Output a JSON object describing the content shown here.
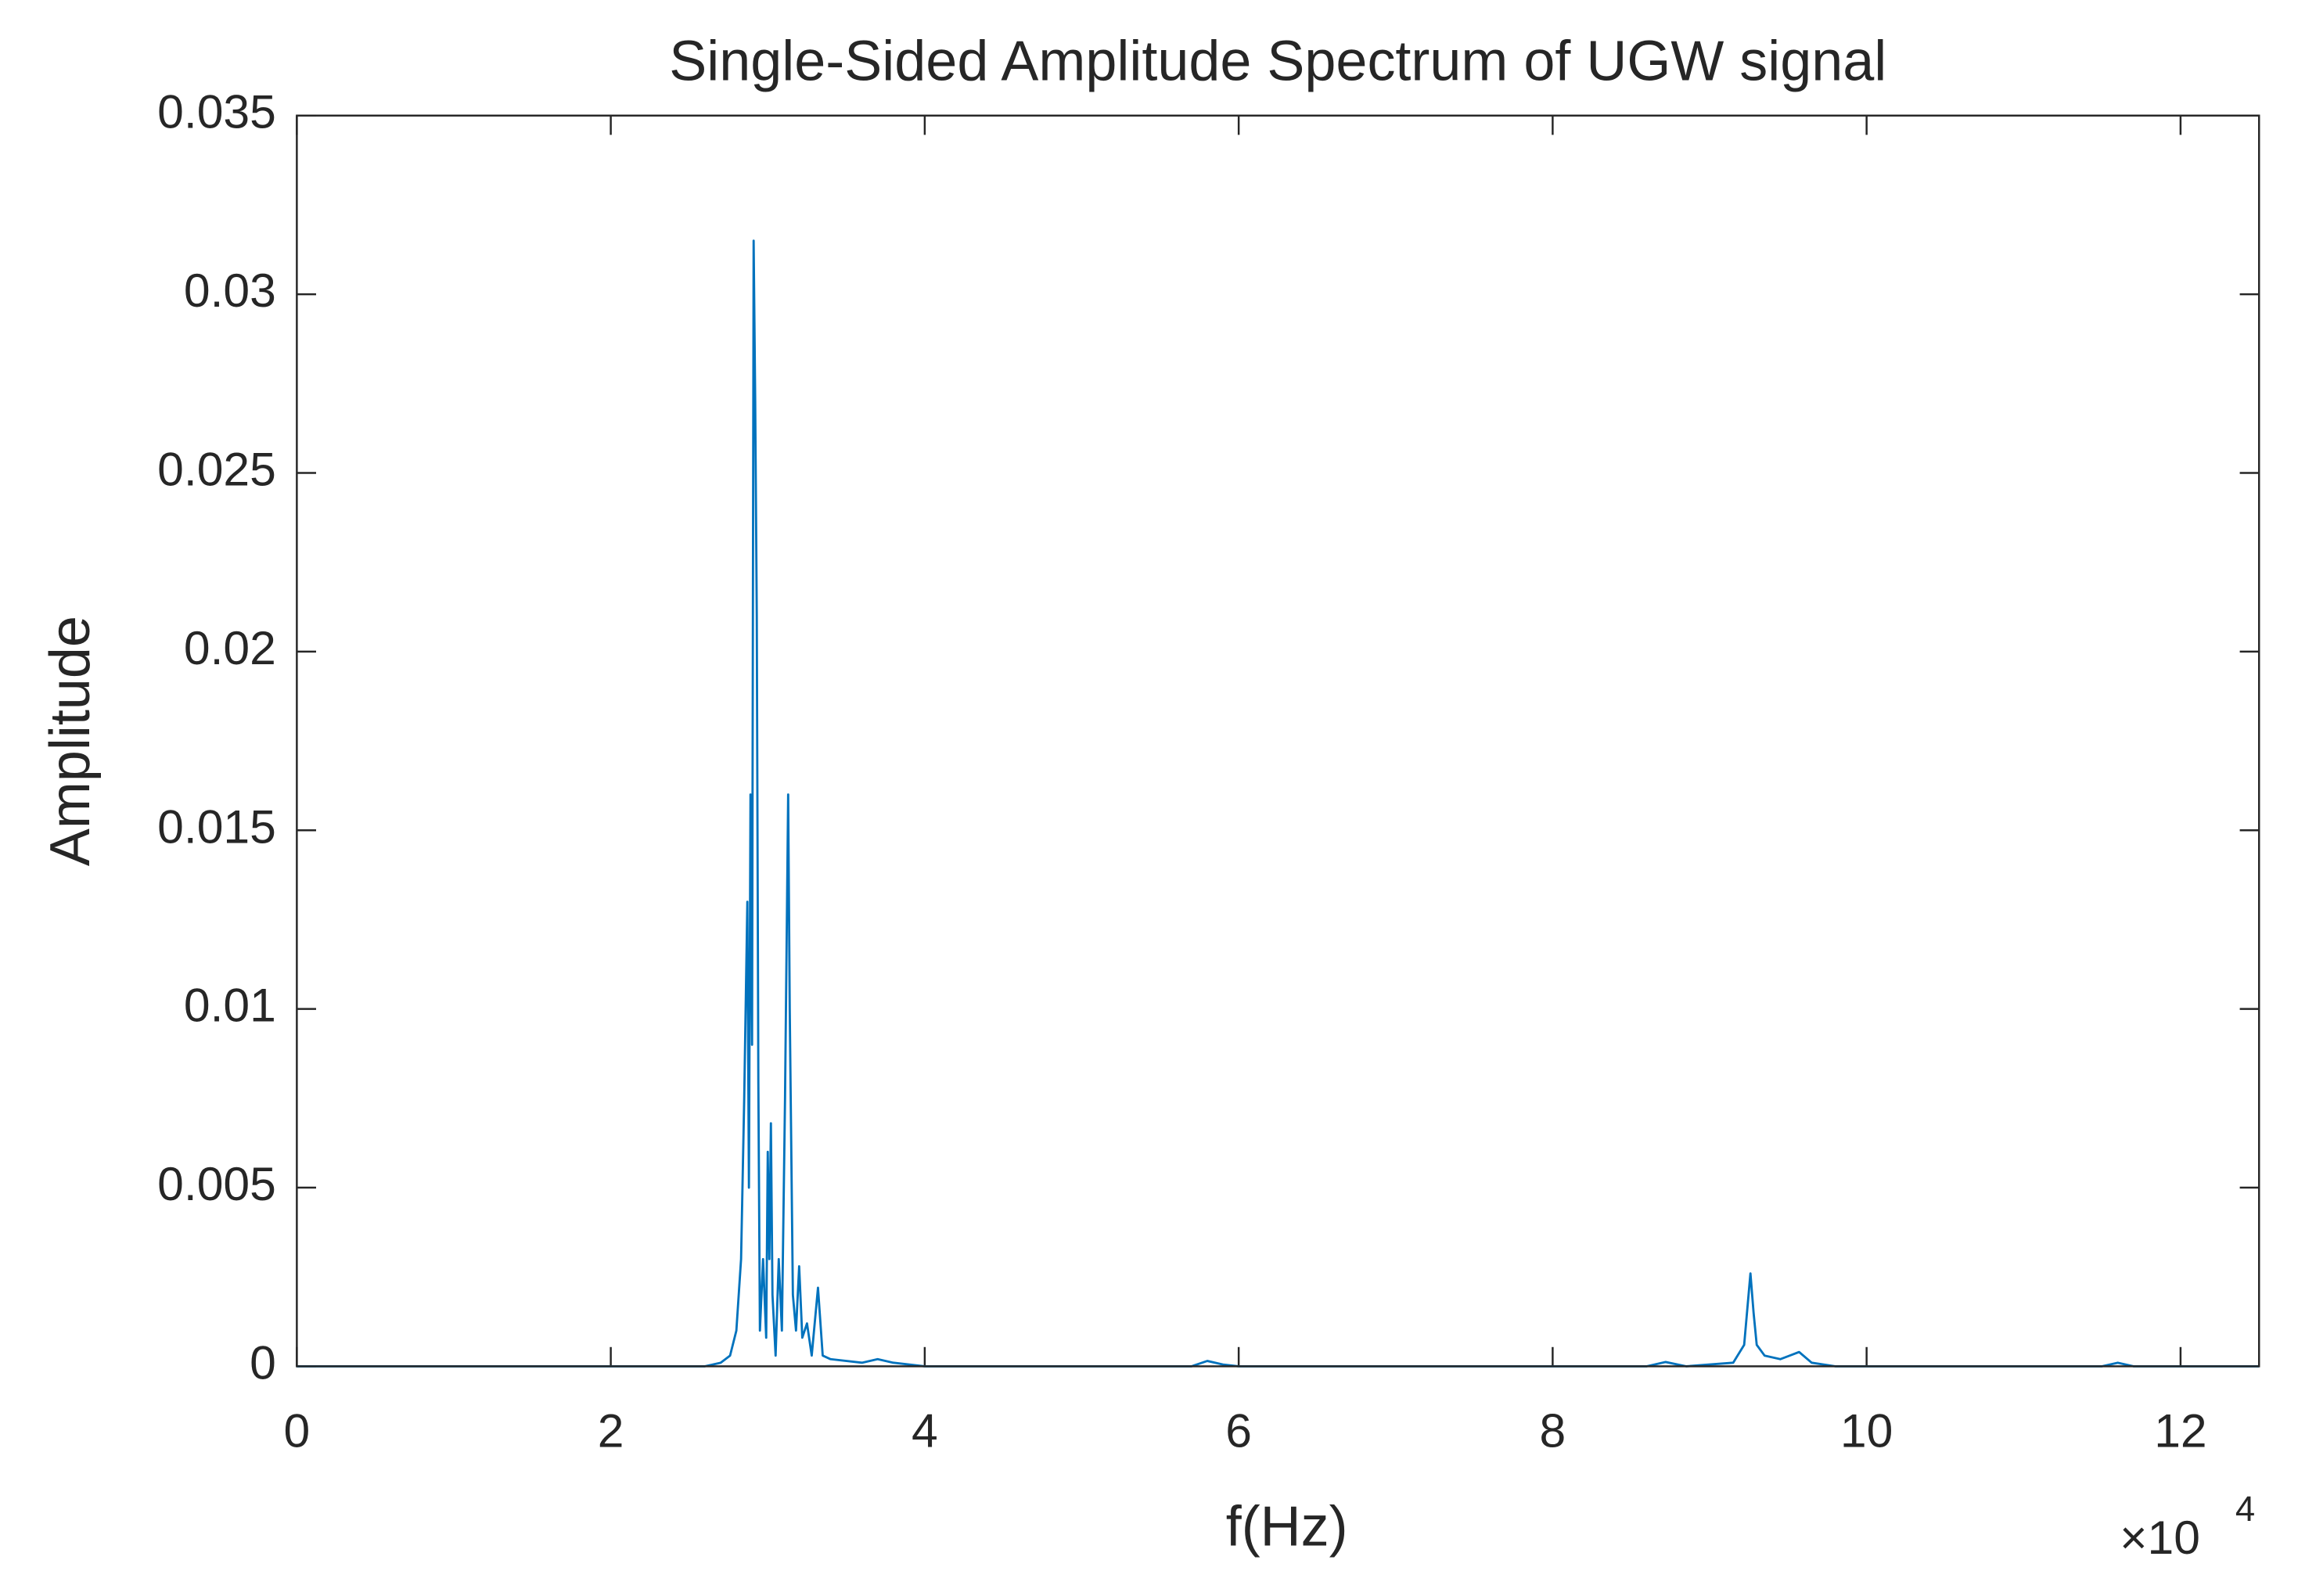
{
  "chart_data": {
    "type": "line",
    "title": "Single-Sided Amplitude Spectrum of UGW signal",
    "x_label": "f(Hz)",
    "y_label": "Amplitude",
    "x_multiplier": "×10",
    "x_exponent": "4",
    "xlim": [
      0,
      12.5
    ],
    "ylim": [
      0,
      0.035
    ],
    "xticks": [
      0,
      2,
      4,
      6,
      8,
      10,
      12
    ],
    "yticks": [
      0,
      0.005,
      0.01,
      0.015,
      0.02,
      0.025,
      0.03,
      0.035
    ],
    "grid": false,
    "x": [
      0,
      2.6,
      2.7,
      2.76,
      2.8,
      2.83,
      2.85,
      2.87,
      2.88,
      2.89,
      2.9,
      2.91,
      2.92,
      2.93,
      2.94,
      2.95,
      2.97,
      2.99,
      3.0,
      3.01,
      3.02,
      3.03,
      3.05,
      3.07,
      3.09,
      3.11,
      3.13,
      3.14,
      3.16,
      3.18,
      3.2,
      3.22,
      3.25,
      3.28,
      3.32,
      3.35,
      3.4,
      3.6,
      3.7,
      3.8,
      4.0,
      5.7,
      5.8,
      5.9,
      6.0,
      8.6,
      8.72,
      8.85,
      9.15,
      9.22,
      9.26,
      9.28,
      9.3,
      9.35,
      9.45,
      9.57,
      9.65,
      9.8,
      11.5,
      11.6,
      11.7,
      12.5
    ],
    "series": [
      {
        "color": "#0072bd",
        "values": [
          0,
          0,
          0.0001,
          0.0003,
          0.001,
          0.003,
          0.0075,
          0.013,
          0.005,
          0.016,
          0.009,
          0.0315,
          0.027,
          0.021,
          0.008,
          0.001,
          0.003,
          0.0008,
          0.006,
          0.003,
          0.0068,
          0.002,
          0.0003,
          0.003,
          0.001,
          0.0075,
          0.016,
          0.01,
          0.002,
          0.001,
          0.0028,
          0.0008,
          0.0012,
          0.0003,
          0.0022,
          0.0003,
          0.0002,
          0.0001,
          0.0002,
          0.0001,
          0,
          0,
          0.00015,
          5e-05,
          0,
          0,
          0.00012,
          0,
          0.0001,
          0.0006,
          0.0026,
          0.0015,
          0.0006,
          0.0003,
          0.0002,
          0.0004,
          0.0001,
          0,
          0,
          0.0001,
          0,
          0
        ]
      }
    ]
  }
}
